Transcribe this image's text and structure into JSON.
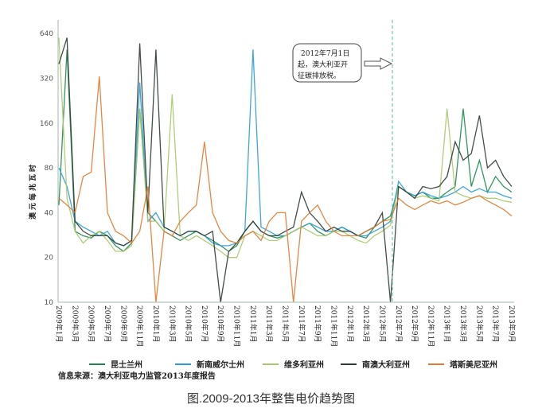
{
  "chart_data": {
    "type": "line",
    "title": "",
    "caption": "图.2009-2013年整售电价趋势图",
    "ylabel": "澳元每兆瓦时",
    "yscale": "log2",
    "ylim": [
      10,
      800
    ],
    "yticks": [
      "10",
      "20",
      "40",
      "80",
      "160",
      "320",
      "640"
    ],
    "ytick_values": [
      10,
      20,
      40,
      80,
      160,
      320,
      640
    ],
    "xtick_labels": [
      "2009年1月",
      "2009年3月",
      "2009年5月",
      "2009年7月",
      "2009年9月",
      "2009年11月",
      "2010年1月",
      "2010年3月",
      "2010年5月",
      "2010年7月",
      "2010年9月",
      "2010年11月",
      "2011年1月",
      "2011年3月",
      "2011年5月",
      "2011年7月",
      "2011年9月",
      "2011年11月",
      "2012年1月",
      "2012年3月",
      "2012年5月",
      "2012年7月",
      "2012年9月",
      "2012年11月",
      "2013年1月",
      "2013年3月",
      "2013年5月",
      "2013年7月",
      "2013年9月"
    ],
    "x_months": 57,
    "annotation": {
      "lines": [
        "2012年7月1日",
        "起，澳大利亚开",
        "征碳排放税。"
      ],
      "month_index": 42
    },
    "legend_placement": "bottom",
    "source": "信息来源：澳大利亚电力监管2013年度报告",
    "series": [
      {
        "name": "昆士兰州",
        "color": "#1d8a4c",
        "values": [
          45,
          500,
          30,
          28,
          27,
          30,
          28,
          24,
          22,
          25,
          200,
          40,
          35,
          30,
          28,
          26,
          28,
          30,
          28,
          26,
          24,
          22,
          24,
          30,
          35,
          30,
          28,
          27,
          28,
          30,
          32,
          34,
          30,
          28,
          30,
          32,
          30,
          28,
          27,
          32,
          35,
          38,
          60,
          55,
          52,
          55,
          50,
          50,
          55,
          60,
          200,
          60,
          90,
          55,
          70,
          60,
          55
        ]
      },
      {
        "name": "新南威尔士州",
        "color": "#2b9bd6",
        "values": [
          80,
          60,
          35,
          32,
          30,
          28,
          30,
          25,
          24,
          26,
          300,
          35,
          40,
          32,
          30,
          28,
          30,
          30,
          28,
          25,
          24,
          24,
          25,
          30,
          500,
          32,
          30,
          28,
          28,
          30,
          32,
          34,
          32,
          30,
          30,
          32,
          30,
          28,
          28,
          30,
          32,
          35,
          65,
          55,
          52,
          55,
          52,
          50,
          52,
          55,
          60,
          55,
          58,
          55,
          55,
          52,
          50
        ]
      },
      {
        "name": "维多利亚州",
        "color": "#a9c96b",
        "values": [
          600,
          50,
          30,
          25,
          28,
          30,
          26,
          22,
          22,
          24,
          200,
          35,
          35,
          30,
          250,
          28,
          26,
          28,
          26,
          24,
          22,
          20,
          20,
          28,
          30,
          28,
          26,
          26,
          28,
          30,
          32,
          30,
          28,
          28,
          30,
          30,
          28,
          26,
          25,
          28,
          30,
          33,
          60,
          55,
          50,
          52,
          50,
          48,
          200,
          55,
          52,
          50,
          52,
          50,
          50,
          48,
          47
        ]
      },
      {
        "name": "南澳大利亚州",
        "color": "#2e3b33",
        "values": [
          400,
          600,
          35,
          30,
          28,
          28,
          28,
          25,
          24,
          26,
          550,
          40,
          500,
          32,
          30,
          28,
          30,
          30,
          28,
          30,
          10,
          22,
          25,
          30,
          35,
          30,
          28,
          28,
          30,
          32,
          55,
          40,
          35,
          30,
          32,
          30,
          30,
          28,
          30,
          32,
          40,
          10,
          60,
          55,
          50,
          60,
          58,
          60,
          70,
          120,
          90,
          100,
          180,
          80,
          90,
          70,
          60
        ]
      },
      {
        "name": "塔斯美尼亚州",
        "color": "#e07a30",
        "values": [
          50,
          45,
          40,
          70,
          75,
          330,
          40,
          30,
          28,
          25,
          30,
          60,
          10,
          30,
          28,
          35,
          40,
          45,
          120,
          40,
          30,
          26,
          25,
          28,
          30,
          26,
          35,
          40,
          40,
          10,
          35,
          40,
          45,
          35,
          30,
          28,
          28,
          28,
          30,
          32,
          35,
          36,
          50,
          45,
          42,
          45,
          48,
          46,
          48,
          45,
          47,
          50,
          52,
          48,
          45,
          42,
          38
        ]
      }
    ]
  }
}
